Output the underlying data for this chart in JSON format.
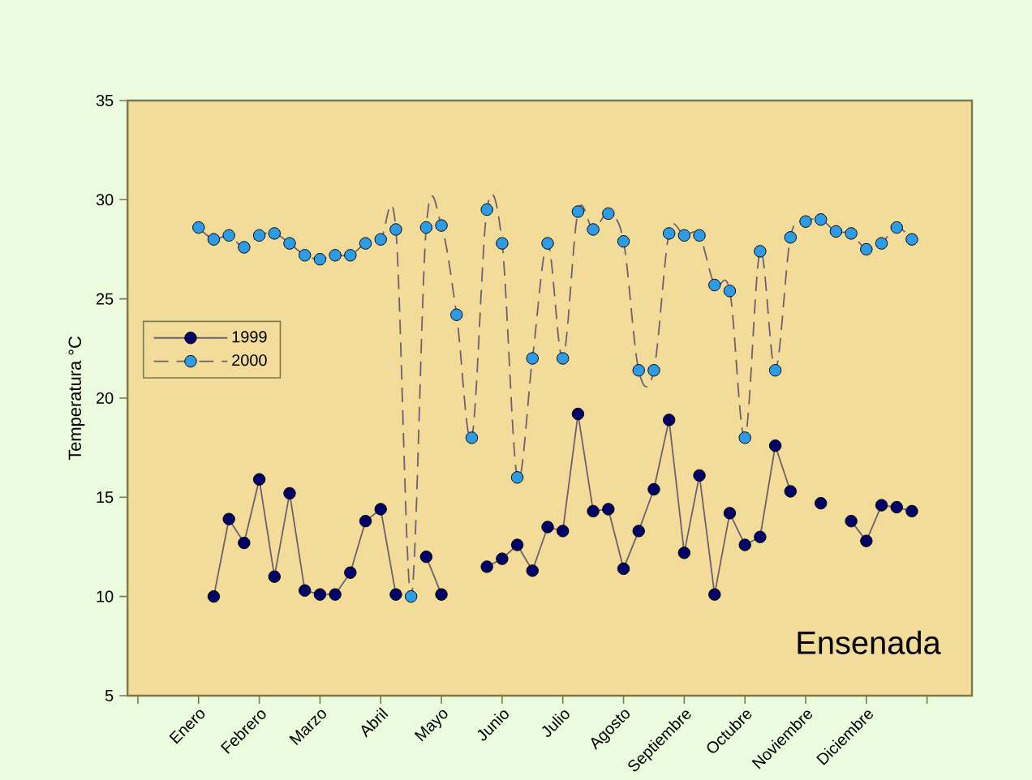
{
  "chart_data": {
    "type": "line",
    "ylabel": "Temperatura °C",
    "annotations": [
      "Ensenada"
    ],
    "categories": [
      "Enero",
      null,
      null,
      null,
      "Febrero",
      null,
      null,
      null,
      "Marzo",
      null,
      null,
      null,
      "Abril",
      null,
      null,
      null,
      "Mayo",
      null,
      null,
      null,
      "Junio",
      null,
      null,
      null,
      "Julio",
      null,
      null,
      null,
      "Agosto",
      null,
      null,
      null,
      "Septiembre",
      null,
      null,
      null,
      "Octubre",
      null,
      null,
      null,
      "Noviembre",
      null,
      null,
      null,
      "Diciembre",
      null,
      null,
      null
    ],
    "ylim": [
      5,
      35
    ],
    "yticks": [
      5,
      10,
      15,
      20,
      25,
      30,
      35
    ],
    "grid": false,
    "legend": "left",
    "marker": "circle",
    "series": [
      {
        "name": "1999",
        "color": "#000066",
        "line_style": "solid",
        "values": [
          null,
          10.0,
          13.9,
          12.7,
          15.9,
          11.0,
          15.2,
          10.3,
          10.1,
          10.1,
          11.2,
          13.8,
          14.4,
          10.1,
          null,
          12.0,
          10.1,
          null,
          null,
          11.5,
          11.9,
          12.6,
          11.3,
          13.5,
          13.3,
          19.2,
          14.3,
          14.4,
          11.4,
          13.3,
          15.4,
          18.9,
          12.2,
          16.1,
          10.1,
          14.2,
          12.6,
          13.0,
          17.6,
          15.3,
          null,
          14.7,
          null,
          13.8,
          12.8,
          14.6,
          14.5,
          14.3
        ]
      },
      {
        "name": "2000",
        "color": "#2e9be6",
        "line_style": "dashed",
        "values": [
          28.6,
          28.0,
          28.2,
          27.6,
          28.2,
          28.3,
          27.8,
          27.2,
          27.0,
          27.2,
          27.2,
          27.8,
          28.0,
          28.5,
          10.0,
          28.6,
          28.7,
          24.2,
          18.0,
          29.5,
          27.8,
          16.0,
          22.0,
          27.8,
          22.0,
          29.4,
          28.5,
          29.3,
          27.9,
          21.4,
          21.4,
          28.3,
          28.2,
          28.2,
          25.7,
          25.4,
          18.0,
          27.4,
          21.4,
          28.1,
          28.9,
          29.0,
          28.4,
          28.3,
          27.5,
          27.8,
          28.6,
          28.0
        ]
      }
    ]
  }
}
